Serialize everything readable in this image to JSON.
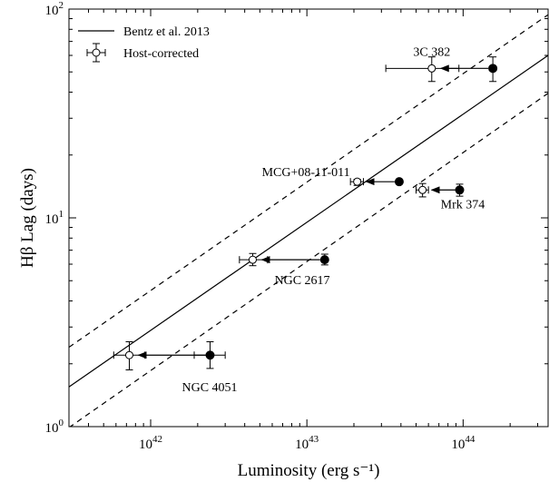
{
  "chart_data": {
    "type": "scatter",
    "xlabel": "Luminosity (erg s⁻¹)",
    "ylabel": "Hβ Lag (days)",
    "xscale": "log",
    "yscale": "log",
    "xlim": [
      3e+41,
      3.5e+44
    ],
    "ylim": [
      1,
      100
    ],
    "x_ticks": [
      {
        "value": 1e+42,
        "base": "10",
        "exp": "42"
      },
      {
        "value": 1e+43,
        "base": "10",
        "exp": "43"
      },
      {
        "value": 1e+44,
        "base": "10",
        "exp": "44"
      }
    ],
    "y_ticks": [
      {
        "value": 1,
        "base": "10",
        "exp": "0"
      },
      {
        "value": 10,
        "base": "10",
        "exp": "1"
      },
      {
        "value": 100,
        "base": "10",
        "exp": "2"
      }
    ],
    "legend": {
      "position": "top-left",
      "entries": [
        {
          "label": "Bentz et al. 2013",
          "marker": "line"
        },
        {
          "label": "Host-corrected",
          "marker": "open-circle-errorbar"
        }
      ]
    },
    "relation": {
      "name": "Bentz et al. 2013",
      "line": [
        [
          3e+41,
          1.55
        ],
        [
          3.5e+44,
          60
        ]
      ],
      "upper_dashed": [
        [
          3e+41,
          2.4
        ],
        [
          3.5e+44,
          94
        ]
      ],
      "lower_dashed": [
        [
          3e+41,
          0.99
        ],
        [
          3.5e+44,
          39.5
        ]
      ]
    },
    "objects": [
      {
        "label": "NGC 4051",
        "label_pos": "below-right",
        "filled": {
          "x": 2.4e+42,
          "y": 2.2,
          "yerr": [
            1.9,
            2.55
          ],
          "xerr": [
            1.9e+42,
            3e+42
          ]
        },
        "host_corrected": {
          "x": 7.3e+41,
          "y": 2.2,
          "yerr": [
            1.87,
            2.55
          ],
          "xerr": [
            5.8e+41,
            9.2e+41
          ]
        }
      },
      {
        "label": "NGC 2617",
        "label_pos": "below-right",
        "filled": {
          "x": 1.3e+43,
          "y": 6.3,
          "yerr": [
            5.95,
            6.7
          ],
          "xerr": null
        },
        "host_corrected": {
          "x": 4.5e+42,
          "y": 6.3,
          "yerr": [
            5.9,
            6.75
          ],
          "xerr": [
            3.7e+42,
            5.6e+42
          ]
        }
      },
      {
        "label": "MCG+08-11-011",
        "label_pos": "left",
        "filled": {
          "x": 3.9e+43,
          "y": 14.9,
          "yerr": null,
          "xerr": null
        },
        "host_corrected": {
          "x": 2.1e+43,
          "y": 14.9,
          "yerr": [
            14.3,
            15.3
          ],
          "xerr": [
            1.9e+43,
            2.3e+43
          ]
        }
      },
      {
        "label": "Mrk 374",
        "label_pos": "below-right",
        "filled": {
          "x": 9.5e+43,
          "y": 13.6,
          "yerr": [
            12.7,
            14.5
          ],
          "xerr": null
        },
        "host_corrected": {
          "x": 5.5e+43,
          "y": 13.6,
          "yerr": [
            12.6,
            14.6
          ],
          "xerr": [
            5e+43,
            6e+43
          ]
        }
      },
      {
        "label": "3C 382",
        "label_pos": "above",
        "filled": {
          "x": 1.55e+44,
          "y": 52,
          "yerr": [
            45,
            59
          ],
          "xerr": null
        },
        "host_corrected": {
          "x": 6.3e+43,
          "y": 52,
          "yerr": [
            45,
            59
          ],
          "xerr": [
            3.2e+43,
            9.4e+43
          ]
        }
      }
    ]
  }
}
